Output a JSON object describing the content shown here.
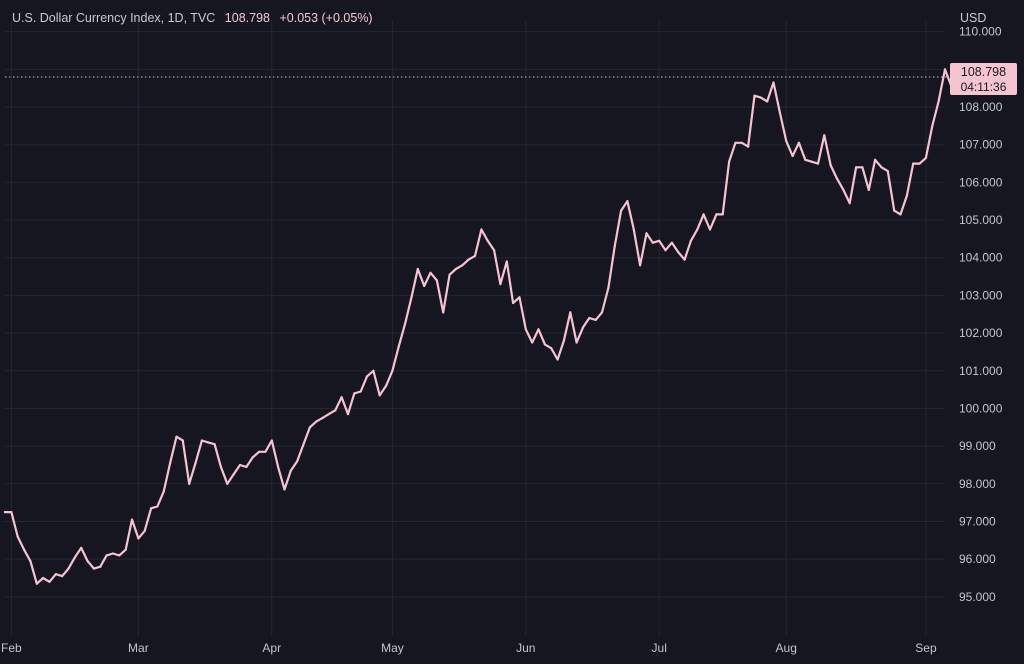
{
  "legend": {
    "name": "U.S. Dollar Currency Index, 1D, TVC",
    "last": "108.798",
    "change": "+0.053 (+0.05%)"
  },
  "axis_currency": "USD",
  "price_tag": {
    "price": "108.798",
    "countdown": "04:11:36"
  },
  "colors": {
    "background": "#161620",
    "line": "#f5c4d0",
    "grid": "#262633"
  },
  "chart_data": {
    "type": "line",
    "title": "U.S. Dollar Currency Index, 1D, TVC",
    "xlabel": "",
    "ylabel": "",
    "grid": true,
    "ylim": [
      94.12,
      110.31
    ],
    "y_ticks": [
      "95.000",
      "96.000",
      "97.000",
      "98.000",
      "99.000",
      "100.000",
      "101.000",
      "102.000",
      "103.000",
      "104.000",
      "105.000",
      "106.000",
      "107.000",
      "108.000",
      "109.000",
      "110.000"
    ],
    "x_ticks": [
      {
        "label": "Feb",
        "index": 1
      },
      {
        "label": "Mar",
        "index": 21
      },
      {
        "label": "Apr",
        "index": 42
      },
      {
        "label": "May",
        "index": 61
      },
      {
        "label": "Jun",
        "index": 82
      },
      {
        "label": "Jul",
        "index": 103
      },
      {
        "label": "Aug",
        "index": 123
      },
      {
        "label": "Sep",
        "index": 145
      }
    ],
    "x_range": [
      0,
      148
    ],
    "last_value": 108.798,
    "series": [
      {
        "values": [
          97.25,
          97.25,
          96.6,
          96.25,
          95.95,
          95.35,
          95.5,
          95.4,
          95.6,
          95.55,
          95.75,
          96.05,
          96.3,
          95.95,
          95.75,
          95.8,
          96.1,
          96.15,
          96.1,
          96.25,
          97.05,
          96.55,
          96.75,
          97.35,
          97.4,
          97.8,
          98.55,
          99.25,
          99.15,
          98.0,
          98.55,
          99.15,
          99.1,
          99.05,
          98.45,
          98.0,
          98.25,
          98.5,
          98.45,
          98.7,
          98.85,
          98.85,
          99.15,
          98.45,
          97.85,
          98.35,
          98.6,
          99.05,
          99.5,
          99.65,
          99.75,
          99.85,
          99.95,
          100.3,
          99.85,
          100.4,
          100.45,
          100.85,
          101.0,
          100.35,
          100.6,
          101.0,
          101.65,
          102.25,
          102.95,
          103.7,
          103.25,
          103.6,
          103.4,
          102.55,
          103.55,
          103.7,
          103.8,
          103.95,
          104.05,
          104.75,
          104.45,
          104.2,
          103.3,
          103.9,
          102.8,
          102.95,
          102.1,
          101.75,
          102.1,
          101.7,
          101.6,
          101.3,
          101.8,
          102.55,
          101.75,
          102.15,
          102.4,
          102.35,
          102.55,
          103.2,
          104.3,
          105.25,
          105.5,
          104.75,
          103.8,
          104.65,
          104.4,
          104.45,
          104.2,
          104.4,
          104.15,
          103.95,
          104.45,
          104.75,
          105.15,
          104.75,
          105.15,
          105.15,
          106.55,
          107.05,
          107.05,
          106.95,
          108.3,
          108.25,
          108.15,
          108.65,
          107.85,
          107.1,
          106.7,
          107.05,
          106.6,
          106.55,
          106.5,
          107.25,
          106.45,
          106.1,
          105.8,
          105.45,
          106.4,
          106.4,
          105.8,
          106.6,
          106.4,
          106.3,
          105.25,
          105.15,
          105.65,
          106.5,
          106.5,
          106.65,
          107.5,
          108.15,
          109.0,
          108.55,
          108.65,
          108.45,
          108.85,
          108.75,
          108.8
        ]
      }
    ]
  }
}
